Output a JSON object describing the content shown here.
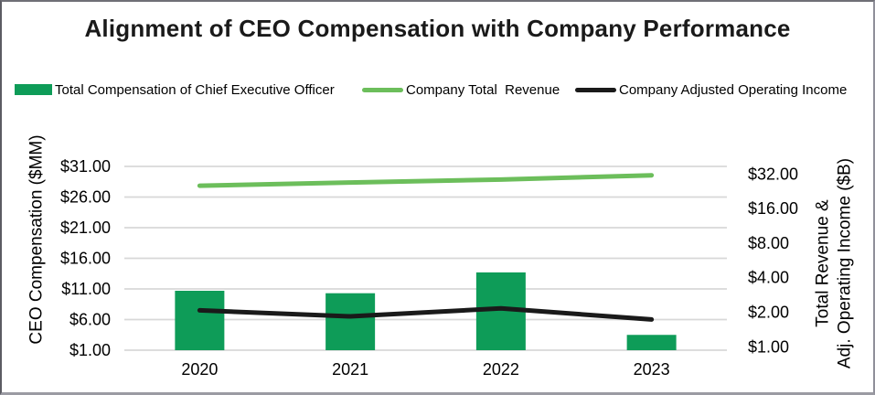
{
  "title": "Alignment of CEO Compensation with Company Performance",
  "legend": {
    "items": [
      {
        "label": "Total Compensation of Chief Executive Officer",
        "swatch": "bar",
        "color": "#0E9C58"
      },
      {
        "label": "Company Total  Revenue",
        "swatch": "line",
        "color": "#6CBE5B"
      },
      {
        "label": "Company Adjusted Operating Income",
        "swatch": "line",
        "color": "#1A1A1A"
      }
    ]
  },
  "chart_data": {
    "type": "combo-bar-line",
    "title": "Alignment of CEO Compensation with Company Performance",
    "categories": [
      "2020",
      "2021",
      "2022",
      "2023"
    ],
    "series": [
      {
        "name": "Total Compensation of Chief Executive Officer",
        "type": "bar",
        "axis": "left",
        "unit": "$MM",
        "color": "#0E9C58",
        "values": [
          10.7,
          10.3,
          13.7,
          3.5
        ]
      },
      {
        "name": "Company Total  Revenue",
        "type": "line",
        "axis": "right",
        "unit": "$B",
        "color": "#6CBE5B",
        "values": [
          25.3,
          27.0,
          28.6,
          31.2
        ]
      },
      {
        "name": "Company Adjusted Operating Income",
        "type": "line",
        "axis": "right",
        "unit": "$B",
        "color": "#1A1A1A",
        "values": [
          2.08,
          1.84,
          2.16,
          1.73
        ]
      }
    ],
    "left_axis": {
      "title": "CEO Compensation ($MM)",
      "scale": "linear",
      "min": 1,
      "max": 31,
      "tick_step": 5,
      "ticks": [
        {
          "label": "$31.00",
          "value": 31
        },
        {
          "label": "$26.00",
          "value": 26
        },
        {
          "label": "$21.00",
          "value": 21
        },
        {
          "label": "$16.00",
          "value": 16
        },
        {
          "label": "$11.00",
          "value": 11
        },
        {
          "label": "$6.00",
          "value": 6
        },
        {
          "label": "$1.00",
          "value": 1
        }
      ]
    },
    "right_axis": {
      "title_lines": [
        "Total Revenue &",
        "Adj. Operating Income ($B)"
      ],
      "scale": "log2",
      "min": 1,
      "max": 32,
      "ticks": [
        {
          "label": "$32.00",
          "value": 32
        },
        {
          "label": "$16.00",
          "value": 16
        },
        {
          "label": "$8.00",
          "value": 8
        },
        {
          "label": "$4.00",
          "value": 4
        },
        {
          "label": "$2.00",
          "value": 2
        },
        {
          "label": "$1.00",
          "value": 1
        }
      ]
    },
    "grid": true,
    "legend_position": "top",
    "colors": {
      "grid": "#D8D8D8",
      "text": "#000000",
      "background": "#FFFFFF"
    }
  }
}
